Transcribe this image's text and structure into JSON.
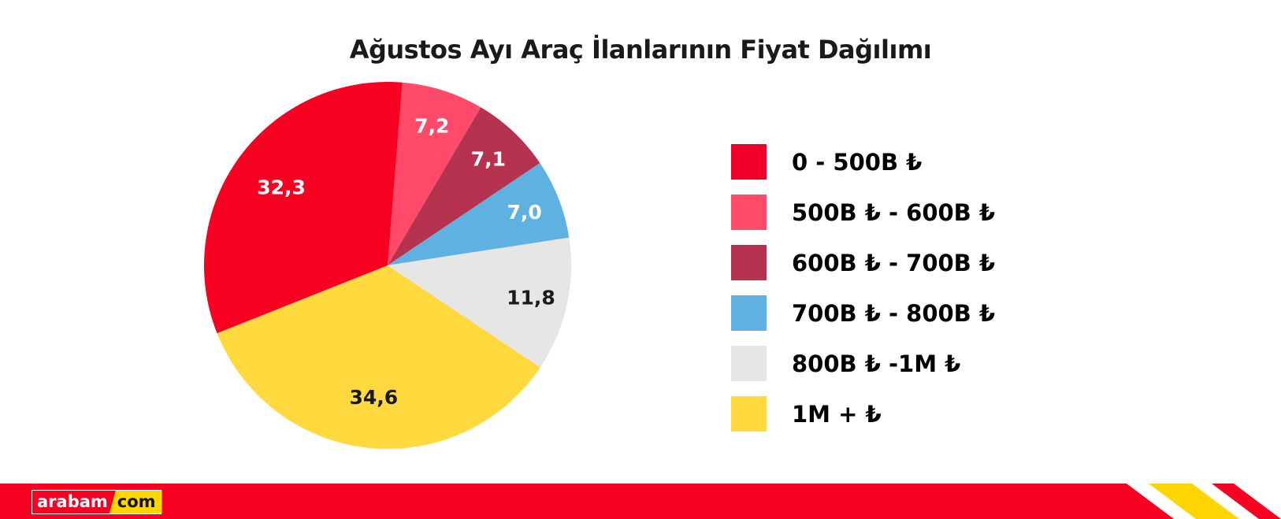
{
  "chart_data": {
    "type": "pie",
    "title": "Ağustos Ayı Araç İlanlarının Fiyat Dağılımı",
    "slices": [
      {
        "label": "500B ₺ - 600B ₺",
        "value": 7.2,
        "value_label": "7,2",
        "color": "#FF4A6A",
        "text_color": "#ffffff"
      },
      {
        "label": "600B ₺ - 700B ₺",
        "value": 7.1,
        "value_label": "7,1",
        "color": "#B5334F",
        "text_color": "#ffffff"
      },
      {
        "label": "700B ₺ - 800B ₺",
        "value": 7.0,
        "value_label": "7,0",
        "color": "#5EB1E0",
        "text_color": "#ffffff"
      },
      {
        "label": "800B ₺ -1M ₺",
        "value": 11.8,
        "value_label": "11,8",
        "color": "#E6E6E6",
        "text_color": "#1a1a1a"
      },
      {
        "label": "1M + ₺",
        "value": 34.6,
        "value_label": "34,6",
        "color": "#FFD93D",
        "text_color": "#1a1a1a"
      },
      {
        "label": "0 - 500B ₺",
        "value": 32.3,
        "value_label": "32,3",
        "color": "#F70022",
        "text_color": "#ffffff"
      }
    ],
    "legend": [
      {
        "label": "0 - 500B ₺",
        "color": "#F00028"
      },
      {
        "label": "500B ₺ - 600B ₺",
        "color": "#FF4A6A"
      },
      {
        "label": "600B ₺ - 700B ₺",
        "color": "#B5334F"
      },
      {
        "label": "700B ₺ - 800B ₺",
        "color": "#5EB1E0"
      },
      {
        "label": "800B ₺ -1M ₺",
        "color": "#E6E6E6"
      },
      {
        "label": "1M + ₺",
        "color": "#FFD93D"
      }
    ],
    "legend_placement": "right"
  },
  "brand": {
    "part1": "arabam",
    "part2": "com",
    "red": "#F70022",
    "yellow": "#FFD500"
  }
}
